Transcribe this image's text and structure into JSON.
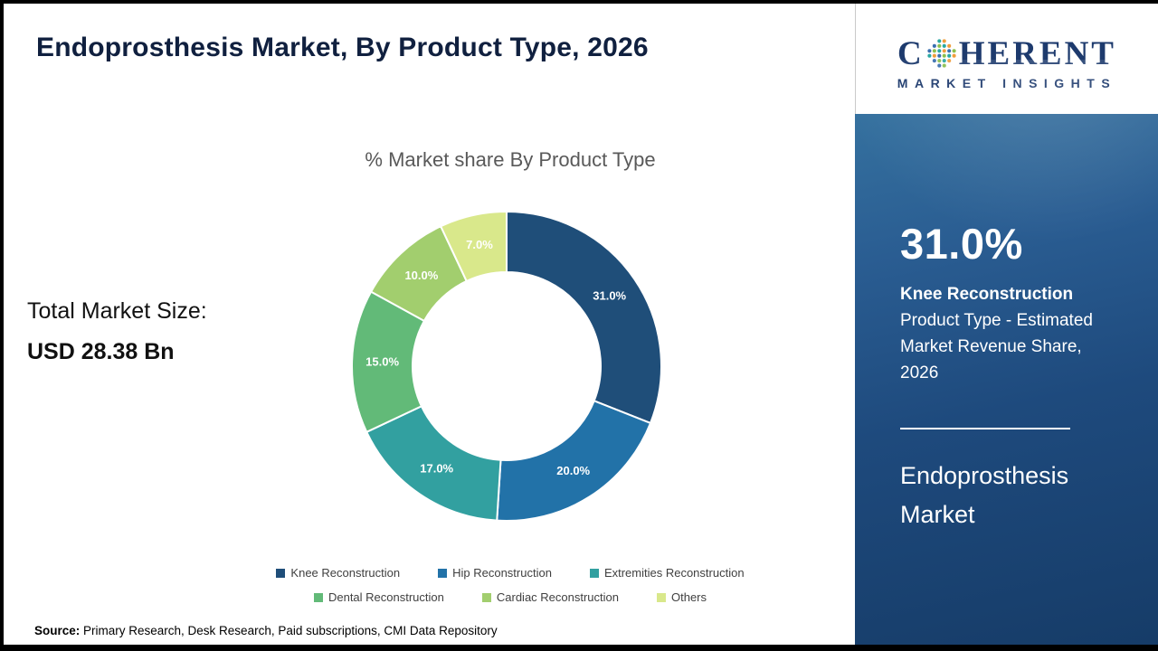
{
  "header": {
    "title": "Endoprosthesis Market, By Product Type, 2026"
  },
  "logo": {
    "name_first_letter": "C",
    "name_rest": "HERENT",
    "tagline": "MARKET INSIGHTS"
  },
  "total_market": {
    "label": "Total Market Size:",
    "value": "USD 28.38 Bn"
  },
  "chart_data": {
    "type": "pie",
    "subtype": "donut",
    "title": "% Market share By Product Type",
    "categories": [
      "Knee Reconstruction",
      "Hip Reconstruction",
      "Extremities Reconstruction",
      "Dental Reconstruction",
      "Cardiac Reconstruction",
      "Others"
    ],
    "values": [
      31.0,
      20.0,
      17.0,
      15.0,
      10.0,
      7.0
    ],
    "labels": [
      "31.0%",
      "20.0%",
      "17.0%",
      "15.0%",
      "10.0%",
      "7.0%"
    ],
    "unit": "%",
    "colors": [
      "#1f4e79",
      "#2272a8",
      "#32a0a0",
      "#62ba78",
      "#a2ce6e",
      "#d9e88b"
    ],
    "start_angle": 0,
    "direction": "clockwise",
    "legend_position": "bottom"
  },
  "sidebar": {
    "stat_value": "31.0%",
    "stat_title": "Knee Reconstruction",
    "stat_desc": "Product Type - Estimated Market Revenue Share, 2026",
    "report_name": "Endoprosthesis Market"
  },
  "source": {
    "label": "Source:",
    "text": " Primary Research, Desk Research, Paid subscriptions, CMI Data Repository"
  },
  "theme": {
    "title_color": "#10203f",
    "sidebar_top": "#35719f",
    "sidebar_bottom": "#163c68",
    "logo_navy": "#1d3a6d"
  }
}
